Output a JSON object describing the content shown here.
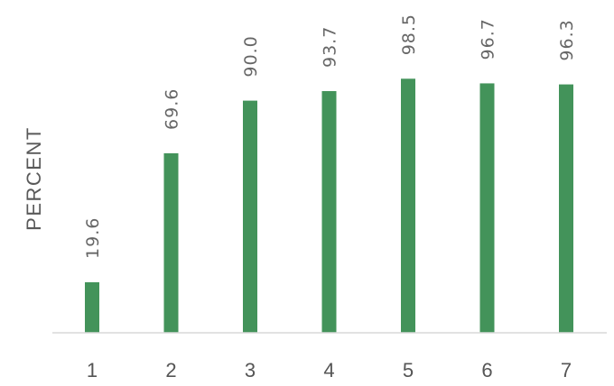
{
  "chart_data": {
    "type": "bar",
    "title": "",
    "xlabel": "",
    "ylabel": "PERCENT",
    "categories": [
      "1",
      "2",
      "3",
      "4",
      "5",
      "6",
      "7"
    ],
    "values": [
      19.6,
      69.6,
      90.0,
      93.7,
      98.5,
      96.7,
      96.3
    ],
    "data_labels": [
      "19.6",
      "69.6",
      "90.0",
      "93.7",
      "98.5",
      "96.7",
      "96.3"
    ],
    "ylim": [
      0,
      100
    ],
    "grid": false,
    "legend": "none",
    "bar_color": "#43935A",
    "axis_color": "#d9d9d9"
  }
}
